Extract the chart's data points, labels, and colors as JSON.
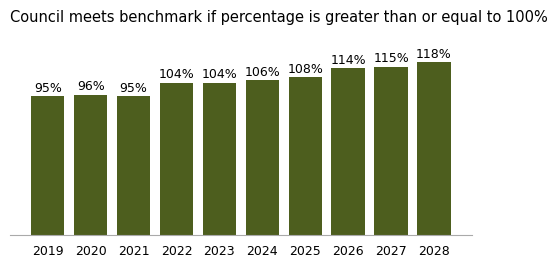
{
  "title": "Council meets benchmark if percentage is greater than or equal to 100%",
  "categories": [
    "2019",
    "2020",
    "2021",
    "2022",
    "2023",
    "2024",
    "2025",
    "2026",
    "2027",
    "2028"
  ],
  "values": [
    95,
    96,
    95,
    104,
    104,
    106,
    108,
    114,
    115,
    118
  ],
  "labels": [
    "95%",
    "96%",
    "95%",
    "104%",
    "104%",
    "106%",
    "108%",
    "114%",
    "115%",
    "118%"
  ],
  "bar_color": "#4d5e1e",
  "background_color": "#ffffff",
  "title_fontsize": 10.5,
  "label_fontsize": 9,
  "tick_fontsize": 9,
  "ylim": [
    0,
    138
  ],
  "bar_width": 0.78
}
